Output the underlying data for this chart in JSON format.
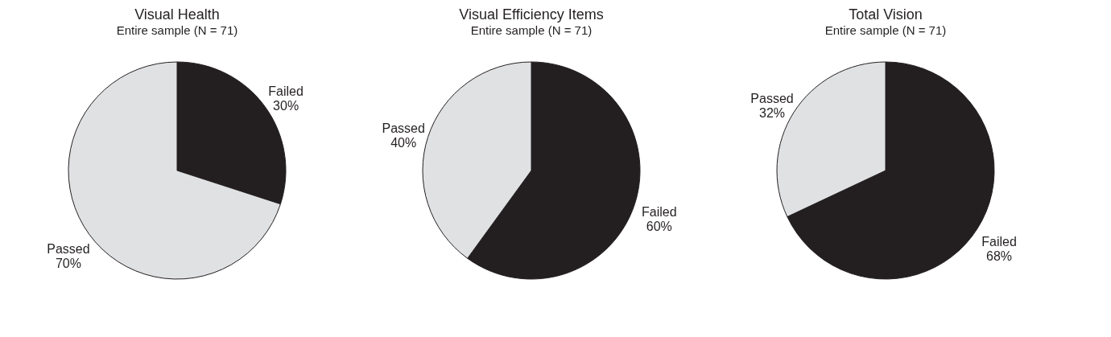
{
  "chart_data": [
    {
      "type": "pie",
      "title": "Visual Health",
      "subtitle": "Entire sample (N = 71)",
      "categories": [
        "Failed",
        "Passed"
      ],
      "values": [
        30,
        70
      ],
      "colors": [
        "#231f20",
        "#e0e1e3"
      ],
      "value_labels": [
        "30%",
        "70%"
      ],
      "legend": false
    },
    {
      "type": "pie",
      "title": "Visual Efficiency Items",
      "subtitle": "Entire sample (N = 71)",
      "categories": [
        "Failed",
        "Passed"
      ],
      "values": [
        60,
        40
      ],
      "colors": [
        "#231f20",
        "#e0e1e3"
      ],
      "value_labels": [
        "60%",
        "40%"
      ],
      "legend": false
    },
    {
      "type": "pie",
      "title": "Total Vision",
      "subtitle": "Entire sample (N = 71)",
      "categories": [
        "Failed",
        "Passed"
      ],
      "values": [
        68,
        32
      ],
      "colors": [
        "#231f20",
        "#e0e1e3"
      ],
      "value_labels": [
        "68%",
        "32%"
      ],
      "legend": false
    }
  ]
}
